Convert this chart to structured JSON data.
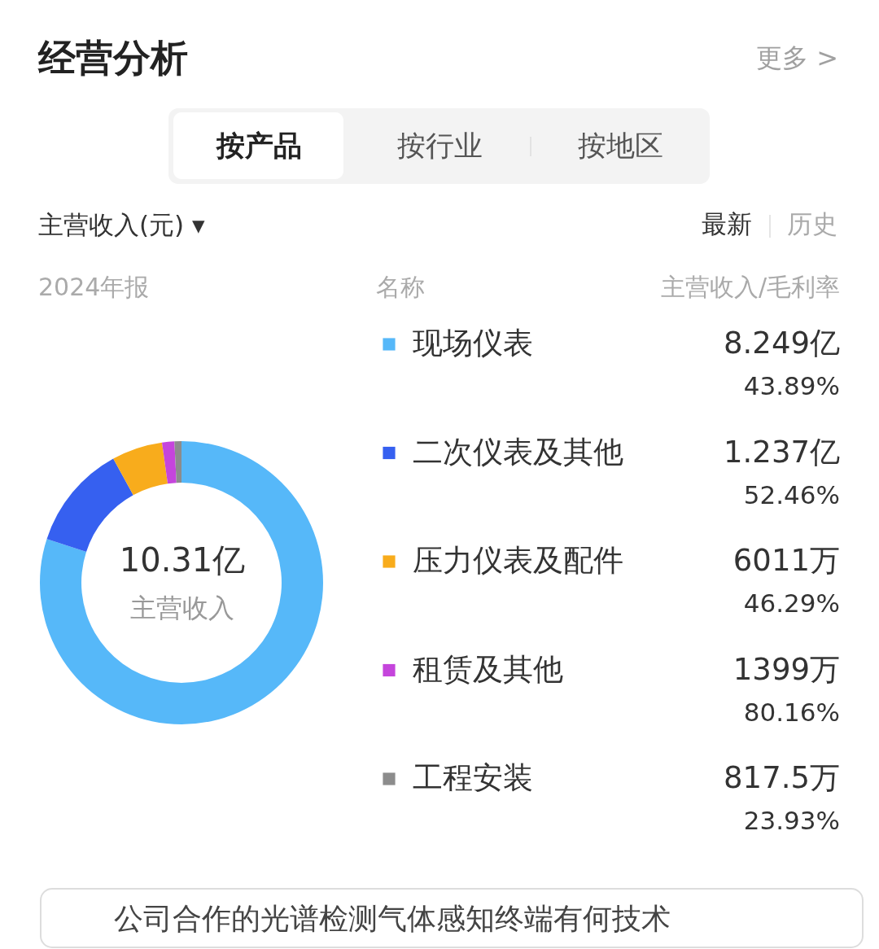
{
  "chart_data": {
    "type": "donut",
    "title": "经营分析",
    "categories": [
      "现场仪表",
      "二次仪表及其他",
      "压力仪表及配件",
      "租赁及其他",
      "工程安装"
    ],
    "values": [
      80.0,
      12.0,
      5.8,
      1.4,
      0.8
    ],
    "colors": [
      "#56b8f9",
      "#3660f0",
      "#f8ac1c",
      "#c545dc",
      "#8c8c8c"
    ],
    "legend": "right",
    "legend_title": "名称",
    "annotations": [
      "更多 >",
      "按产品",
      "按行业",
      "按地区",
      "主营收入(元) ▾",
      "最新",
      "历史",
      "2024年报",
      "主营收入/毛利率",
      "10.31亿",
      "主营收入",
      "8.249亿",
      "1.237亿",
      "6011万",
      "1399万",
      "817.5万",
      "43.89%",
      "52.46%",
      "46.29%",
      "80.16%",
      "23.93%",
      "公司合作的光谱检测气体感知终端有何技术"
    ]
  }
}
